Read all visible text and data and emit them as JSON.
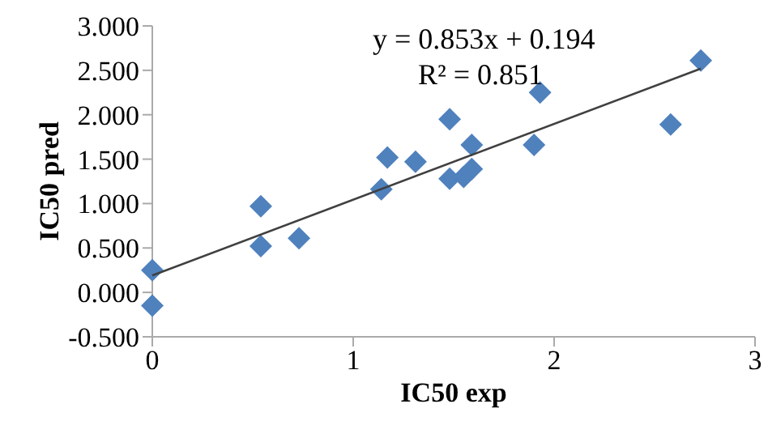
{
  "chart_data": {
    "type": "scatter",
    "xlabel": "IC50 exp",
    "ylabel": "IC50 pred",
    "xlim": [
      0,
      3
    ],
    "xticks": [
      0,
      1,
      2,
      3
    ],
    "ylim": [
      -0.5,
      3
    ],
    "yticks": [
      {
        "value": -0.5,
        "label": "-0.500"
      },
      {
        "value": 0,
        "label": "0.000"
      },
      {
        "value": 0.5,
        "label": "0.500"
      },
      {
        "value": 1,
        "label": "1.000"
      },
      {
        "value": 1.5,
        "label": "1.500"
      },
      {
        "value": 2,
        "label": "2.000"
      },
      {
        "value": 2.5,
        "label": "2.500"
      },
      {
        "value": 3,
        "label": "3.000"
      }
    ],
    "grid": false,
    "legend": false,
    "annotations": [
      "y = 0.853x + 0.194",
      "R² = 0.851"
    ],
    "series": [
      {
        "type": "scatter",
        "color": "#4f81bd",
        "marker": "diamond",
        "x": [
          0,
          0,
          0.54,
          0.54,
          0.73,
          1.14,
          1.17,
          1.31,
          1.48,
          1.48,
          1.55,
          1.59,
          1.59,
          1.9,
          1.93,
          2.58,
          2.73
        ],
        "values": [
          0.25,
          -0.15,
          0.52,
          0.97,
          0.61,
          1.16,
          1.52,
          1.47,
          1.95,
          1.28,
          1.3,
          1.39,
          1.66,
          1.66,
          2.25,
          1.89,
          2.61
        ]
      },
      {
        "type": "line",
        "color": "#404040",
        "marker": "none",
        "line_style": "solid",
        "x": [
          0,
          2.73
        ],
        "values": [
          0.19,
          2.52
        ]
      }
    ]
  }
}
